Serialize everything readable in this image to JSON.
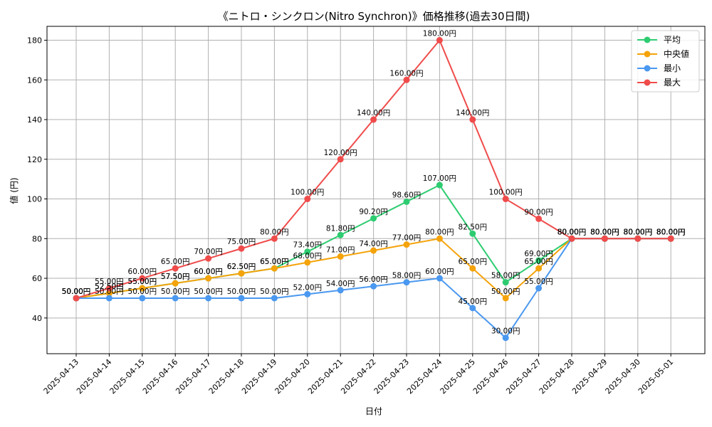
{
  "chart_data": {
    "type": "line",
    "title": "《ニトロ・シンクロン(Nitro Synchron)》価格推移(過去30日間)",
    "xlabel": "日付",
    "ylabel": "値 (円)",
    "ylim": [
      22,
      187
    ],
    "yticks": [
      40,
      60,
      80,
      100,
      120,
      140,
      160,
      180
    ],
    "grid": true,
    "legend_position": "top-right",
    "label_suffix": "円",
    "categories": [
      "2025-04-13",
      "2025-04-14",
      "2025-04-15",
      "2025-04-16",
      "2025-04-17",
      "2025-04-18",
      "2025-04-19",
      "2025-04-20",
      "2025-04-21",
      "2025-04-22",
      "2025-04-23",
      "2025-04-24",
      "2025-04-25",
      "2025-04-26",
      "2025-04-27",
      "2025-04-28",
      "2025-04-29",
      "2025-04-30",
      "2025-05-01"
    ],
    "series": [
      {
        "name": "平均",
        "color": "#2ecc71",
        "values": [
          50,
          52.5,
          55,
          57.5,
          60,
          62.5,
          65,
          73.4,
          81.8,
          90.2,
          98.6,
          107,
          82.5,
          58,
          69,
          80,
          80,
          80,
          80
        ]
      },
      {
        "name": "中央値",
        "color": "#f5a30a",
        "values": [
          50,
          52.5,
          55,
          57.5,
          60,
          62.5,
          65,
          68,
          71,
          74,
          77,
          80,
          65,
          50,
          65,
          80,
          80,
          80,
          80
        ]
      },
      {
        "name": "最小",
        "color": "#4a98f0",
        "values": [
          50,
          50,
          50,
          50,
          50,
          50,
          50,
          52,
          54,
          56,
          58,
          60,
          45,
          30,
          55,
          80,
          80,
          80,
          80
        ]
      },
      {
        "name": "最大",
        "color": "#f04b4b",
        "values": [
          50,
          55,
          60,
          65,
          70,
          75,
          80,
          100,
          120,
          140,
          160,
          180,
          140,
          100,
          90,
          80,
          80,
          80,
          80
        ]
      }
    ]
  }
}
